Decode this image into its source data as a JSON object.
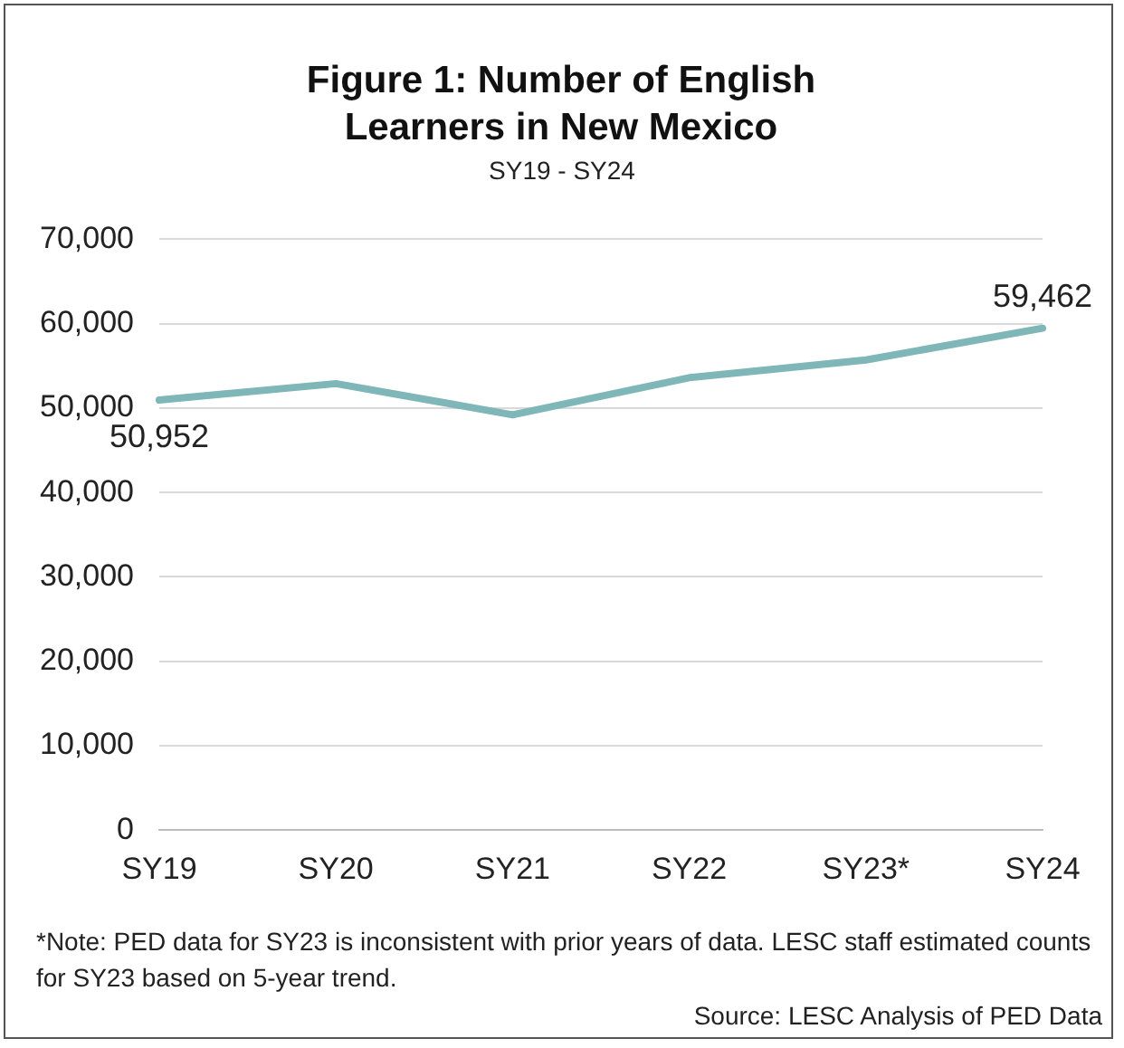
{
  "chart_data": {
    "type": "line",
    "title": "Figure 1: Number of English Learners in New Mexico",
    "subtitle": "SY19 - SY24",
    "categories": [
      "SY19",
      "SY20",
      "SY21",
      "SY22",
      "SY23*",
      "SY24"
    ],
    "series": [
      {
        "color": "#7fb6b8",
        "values": [
          50952,
          52900,
          49200,
          53600,
          55700,
          59462
        ],
        "value_labels": [
          "50,952",
          null,
          null,
          null,
          null,
          "59,462"
        ]
      }
    ],
    "ylim": [
      0,
      70000
    ],
    "yticks": [
      0,
      {
        "value": 10000,
        "label": "10,000"
      },
      {
        "value": 20000,
        "label": "20,000"
      },
      {
        "value": 30000,
        "label": "30,000"
      },
      {
        "value": 40000,
        "label": "40,000"
      },
      {
        "value": 50000,
        "label": "50,000"
      },
      {
        "value": 60000,
        "label": "60,000"
      },
      {
        "value": 70000,
        "label": "70,000"
      }
    ],
    "grid": "y",
    "legend": false,
    "marker": "none",
    "line_style": "solid",
    "annotations": [
      "*Note: PED data for SY23 is inconsistent with prior years of data. LESC staff estimated counts for SY23 based on 5-year trend.",
      "Source: LESC Analysis of PED Data"
    ]
  }
}
